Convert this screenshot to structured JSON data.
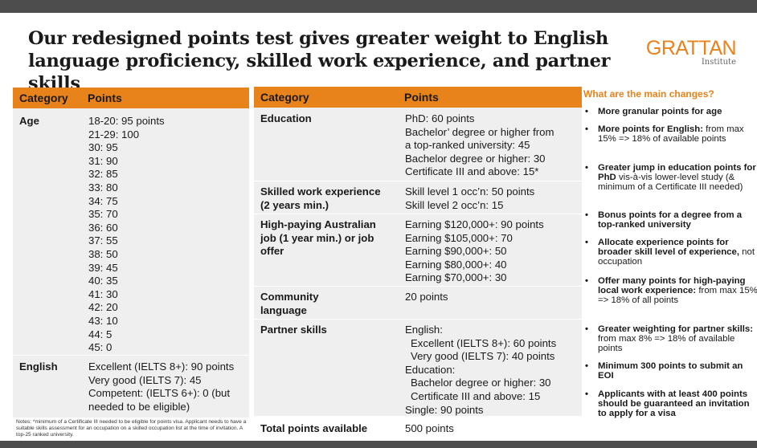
{
  "title": "Our redesigned points test gives greater weight to English language proficiency, skilled work experience, and partner skills",
  "logo": {
    "main": "GRATTAN",
    "sub": "Institute"
  },
  "left_table": {
    "headers": {
      "category": "Category",
      "points": "Points"
    },
    "rows": [
      {
        "category": "Age",
        "values": [
          "18-20: 95 points",
          "21-29: 100",
          "30: 95",
          "31: 90",
          "32: 85",
          "33: 80",
          "34: 75",
          "35: 70",
          "36: 60",
          "37: 55",
          "38: 50",
          "39: 45",
          "40: 35",
          "41: 30",
          "42: 20",
          "43: 10",
          "44: 5",
          "45: 0"
        ]
      },
      {
        "category": "English",
        "values": [
          "Excellent (IELTS 8+): 90 points",
          "Very good (IELTS 7): 45",
          "Competent: (IELTS 6+): 0 (but",
          "needed to be eligible)"
        ]
      }
    ]
  },
  "notes": "Notes: *minimum of a Certificate III needed to be eligible for points visa. Applicant needs to have a suitable skills assessment for an occupation on a skilled occupation list at the time of invitation. A top-25 ranked university.",
  "mid_table": {
    "headers": {
      "category": "Category",
      "points": "Points"
    },
    "rows": [
      {
        "category": [
          "Education"
        ],
        "values": [
          "PhD: 60 points",
          "Bachelor’ degree or higher from",
          "a top-ranked university: 45",
          "Bachelor degree or higher: 30",
          "Certificate III and above: 15*"
        ]
      },
      {
        "category": [
          "Skilled work experience",
          "(2 years min.)"
        ],
        "values": [
          "Skill level 1 occ’n: 50 points",
          "Skill level 2 occ’n: 15"
        ]
      },
      {
        "category": [
          "High-paying Australian",
          "job (1 year min.) or job",
          "offer"
        ],
        "values": [
          "Earning $120,000+: 90 points",
          "Earning $105,000+: 70",
          "Earning $90,000+: 50",
          "Earning $80,000+: 40",
          "Earning $70,000+: 30"
        ]
      },
      {
        "category": [
          "Community",
          "language"
        ],
        "values": [
          "20 points"
        ]
      },
      {
        "category": [
          "Partner skills"
        ],
        "values": [
          "English:",
          "Excellent (IELTS 8+): 60 points",
          "Very good (IELTS 7): 40 points",
          "Education:",
          "Bachelor degree or higher: 30",
          "Certificate III and above: 15",
          "Single: 90 points"
        ]
      },
      {
        "category": [
          "Total points available"
        ],
        "values": [
          "500 points"
        ]
      }
    ]
  },
  "changes": {
    "title": "What are the main changes?",
    "bullet": "•",
    "items": [
      {
        "bold": "More granular points for age",
        "rest": ""
      },
      {
        "bold": "More points for English:",
        "rest": " from max 15% => 18% of available points"
      },
      {
        "bold": "Greater jump in education points for PhD",
        "rest": " vis-à-vis lower-level study (& minimum of a Certificate III needed)"
      },
      {
        "bold": "Bonus points for a degree from a top-ranked university",
        "rest": ""
      },
      {
        "bold": "Allocate experience points for broader skill level of experience,",
        "rest": " not occupation"
      },
      {
        "bold": "Offer many points for high-paying local work experience:",
        "rest": " from max 15% => 18% of all points"
      },
      {
        "bold": "Greater weighting for partner skills:",
        "rest": " from max 8% => 18% of available points"
      },
      {
        "bold": "Minimum 300 points to submit an EOI",
        "rest": ""
      },
      {
        "bold": "Applicants with at least 400 points should be guaranteed an invitation to apply for a visa",
        "rest": ""
      }
    ]
  }
}
